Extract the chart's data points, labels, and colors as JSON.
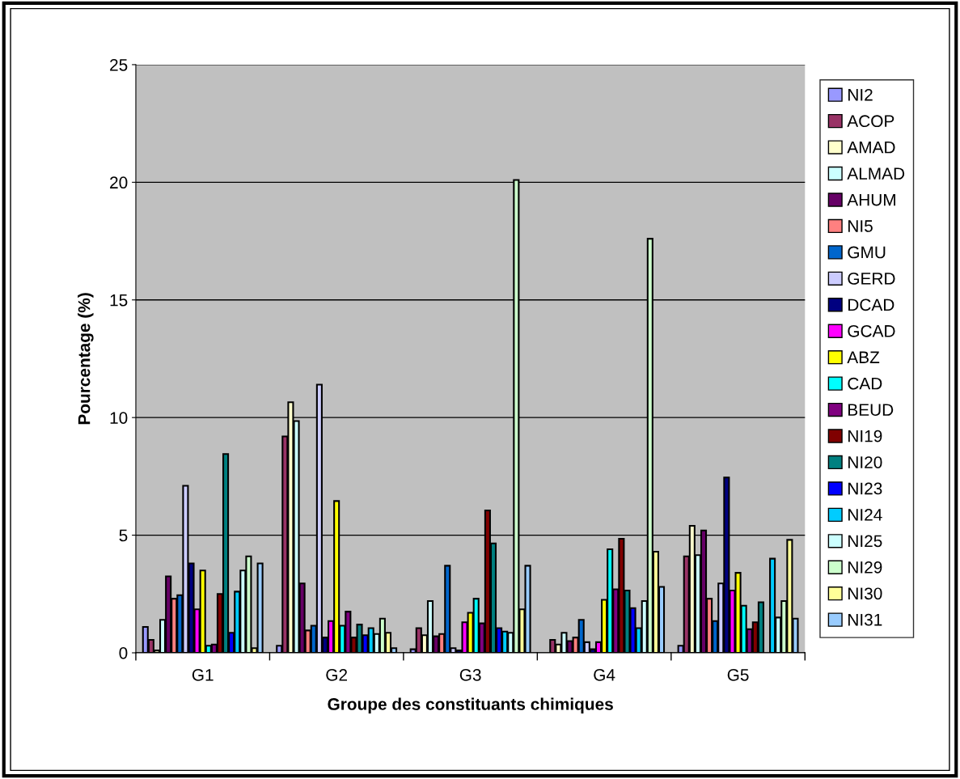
{
  "chart_data": {
    "type": "bar",
    "xlabel": "Groupe des constituants chimiques",
    "ylabel": "Pourcentage (%)",
    "categories": [
      "G1",
      "G2",
      "G3",
      "G4",
      "G5"
    ],
    "ylim": [
      0,
      25
    ],
    "yticks": [
      0,
      5,
      10,
      15,
      20,
      25
    ],
    "grid": "y",
    "legend": "right",
    "series": [
      {
        "name": "NI2",
        "color": "#9999ff",
        "values": [
          1.1,
          0.3,
          0.15,
          null,
          0.3
        ]
      },
      {
        "name": "ACOP",
        "color": "#993366",
        "values": [
          0.55,
          9.2,
          1.05,
          0.55,
          4.1
        ]
      },
      {
        "name": "AMAD",
        "color": "#ffffcc",
        "values": [
          0.1,
          10.65,
          0.75,
          0.35,
          5.4
        ]
      },
      {
        "name": "ALMAD",
        "color": "#ccffff",
        "values": [
          1.4,
          9.85,
          2.2,
          0.85,
          4.15
        ]
      },
      {
        "name": "AHUM",
        "color": "#660066",
        "values": [
          3.25,
          2.95,
          0.7,
          0.5,
          5.2
        ]
      },
      {
        "name": "NI5",
        "color": "#ff8080",
        "values": [
          2.3,
          0.95,
          0.8,
          0.65,
          2.3
        ]
      },
      {
        "name": "GMU",
        "color": "#0066cc",
        "values": [
          2.45,
          1.15,
          3.7,
          1.4,
          1.35
        ]
      },
      {
        "name": "GERD",
        "color": "#ccccff",
        "values": [
          7.1,
          11.4,
          0.2,
          0.45,
          2.95
        ]
      },
      {
        "name": "DCAD",
        "color": "#000080",
        "values": [
          3.8,
          0.65,
          0.1,
          0.15,
          7.45
        ]
      },
      {
        "name": "GCAD",
        "color": "#ff00ff",
        "values": [
          1.85,
          1.35,
          1.3,
          0.45,
          2.65
        ]
      },
      {
        "name": "ABZ",
        "color": "#ffff00",
        "values": [
          3.5,
          6.45,
          1.7,
          2.25,
          3.4
        ]
      },
      {
        "name": "CAD",
        "color": "#00ffff",
        "values": [
          0.3,
          1.15,
          2.3,
          4.4,
          2.0
        ]
      },
      {
        "name": "BEUD",
        "color": "#800080",
        "values": [
          0.35,
          1.75,
          1.25,
          2.7,
          1.0
        ]
      },
      {
        "name": "NI19",
        "color": "#800000",
        "values": [
          2.5,
          0.65,
          6.05,
          4.85,
          1.3
        ]
      },
      {
        "name": "NI20",
        "color": "#008080",
        "values": [
          8.45,
          1.2,
          4.65,
          2.65,
          2.15
        ]
      },
      {
        "name": "NI23",
        "color": "#0000ff",
        "values": [
          0.85,
          0.75,
          1.05,
          1.9,
          null
        ]
      },
      {
        "name": "NI24",
        "color": "#00ccff",
        "values": [
          2.6,
          1.05,
          0.9,
          1.05,
          4.0
        ]
      },
      {
        "name": "NI25",
        "color": "#ccffff",
        "values": [
          3.5,
          0.8,
          0.85,
          2.2,
          1.5
        ]
      },
      {
        "name": "NI29",
        "color": "#ccffcc",
        "values": [
          4.1,
          1.45,
          20.1,
          17.6,
          2.2
        ]
      },
      {
        "name": "NI30",
        "color": "#ffff99",
        "values": [
          0.2,
          0.85,
          1.85,
          4.3,
          4.8
        ]
      },
      {
        "name": "NI31",
        "color": "#99ccff",
        "values": [
          3.8,
          0.2,
          3.7,
          2.8,
          1.45
        ]
      }
    ]
  }
}
